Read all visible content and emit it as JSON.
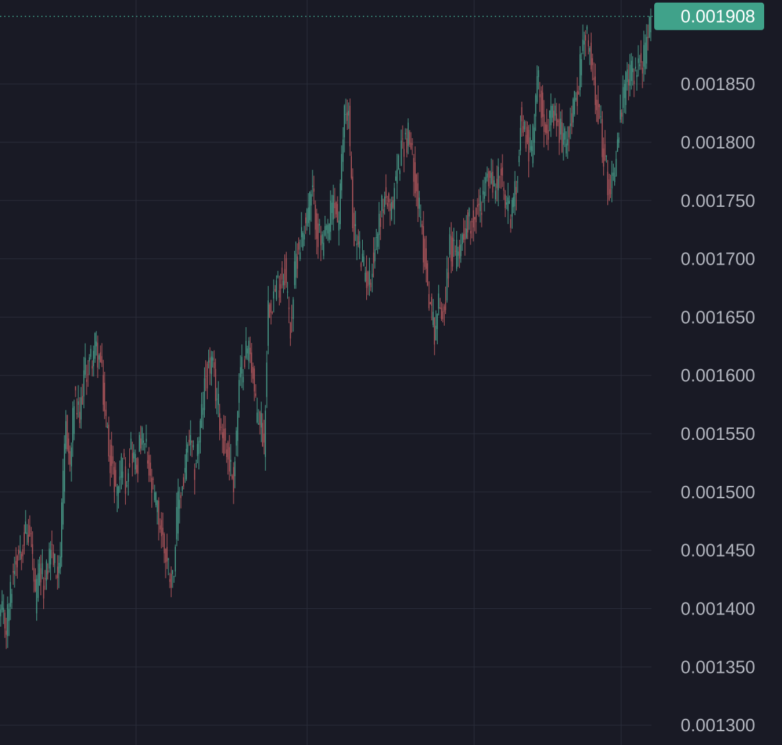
{
  "theme": {
    "background": "#191a25",
    "grid_color": "#2a2d3a",
    "up_color": "#4ba38f",
    "down_color": "#b95a5f",
    "axis_text_color": "#b2b5be",
    "last_price_color": "#40a28a"
  },
  "chart_data": {
    "type": "candlestick",
    "title": "",
    "xlabel": "",
    "ylabel": "",
    "grid": true,
    "y_axis_position": "right",
    "ylim": [
      0.001283,
      0.001922
    ],
    "y_ticks": [
      "0.001300",
      "0.001350",
      "0.001400",
      "0.001450",
      "0.001500",
      "0.001550",
      "0.001600",
      "0.001650",
      "0.001700",
      "0.001750",
      "0.001800",
      "0.001850"
    ],
    "last_price": "0.001908",
    "price_waypoints": [
      [
        0,
        0.001395
      ],
      [
        4,
        0.001385
      ],
      [
        10,
        0.00144
      ],
      [
        18,
        0.001465
      ],
      [
        22,
        0.00146
      ],
      [
        25,
        0.001405
      ],
      [
        28,
        0.00143
      ],
      [
        32,
        0.00142
      ],
      [
        36,
        0.001455
      ],
      [
        40,
        0.00143
      ],
      [
        43,
        0.00145
      ],
      [
        47,
        0.00156
      ],
      [
        50,
        0.00152
      ],
      [
        53,
        0.00158
      ],
      [
        57,
        0.00156
      ],
      [
        60,
        0.0016
      ],
      [
        64,
        0.00161
      ],
      [
        68,
        0.001625
      ],
      [
        72,
        0.00161
      ],
      [
        75,
        0.00157
      ],
      [
        80,
        0.00152
      ],
      [
        84,
        0.0015
      ],
      [
        88,
        0.00153
      ],
      [
        90,
        0.00151
      ],
      [
        94,
        0.00154
      ],
      [
        98,
        0.00152
      ],
      [
        101,
        0.001545
      ],
      [
        105,
        0.001535
      ],
      [
        108,
        0.001505
      ],
      [
        112,
        0.00149
      ],
      [
        116,
        0.001465
      ],
      [
        120,
        0.00144
      ],
      [
        124,
        0.001425
      ],
      [
        128,
        0.00149
      ],
      [
        132,
        0.00151
      ],
      [
        136,
        0.001545
      ],
      [
        140,
        0.00152
      ],
      [
        144,
        0.001555
      ],
      [
        148,
        0.0016
      ],
      [
        152,
        0.00161
      ],
      [
        156,
        0.00158
      ],
      [
        160,
        0.00155
      ],
      [
        164,
        0.00153
      ],
      [
        168,
        0.00151
      ],
      [
        172,
        0.00159
      ],
      [
        176,
        0.00162
      ],
      [
        180,
        0.001625
      ],
      [
        184,
        0.00157
      ],
      [
        188,
        0.00156
      ],
      [
        190,
        0.00154
      ],
      [
        193,
        0.00166
      ],
      [
        197,
        0.00167
      ],
      [
        201,
        0.00168
      ],
      [
        205,
        0.00169
      ],
      [
        209,
        0.00164
      ],
      [
        213,
        0.0017
      ],
      [
        217,
        0.00172
      ],
      [
        221,
        0.00174
      ],
      [
        225,
        0.001755
      ],
      [
        229,
        0.00172
      ],
      [
        233,
        0.00171
      ],
      [
        237,
        0.00173
      ],
      [
        240,
        0.00175
      ],
      [
        244,
        0.00173
      ],
      [
        248,
        0.00183
      ],
      [
        251,
        0.001825
      ],
      [
        254,
        0.00173
      ],
      [
        258,
        0.00171
      ],
      [
        262,
        0.00169
      ],
      [
        266,
        0.00168
      ],
      [
        270,
        0.00171
      ],
      [
        274,
        0.00174
      ],
      [
        278,
        0.001755
      ],
      [
        281,
        0.00173
      ],
      [
        285,
        0.00177
      ],
      [
        290,
        0.0018
      ],
      [
        294,
        0.001805
      ],
      [
        298,
        0.00178
      ],
      [
        302,
        0.00174
      ],
      [
        306,
        0.0017
      ],
      [
        310,
        0.00166
      ],
      [
        313,
        0.00164
      ],
      [
        316,
        0.00166
      ],
      [
        320,
        0.001655
      ],
      [
        324,
        0.00171
      ],
      [
        328,
        0.0017
      ],
      [
        332,
        0.001715
      ],
      [
        336,
        0.00173
      ],
      [
        340,
        0.001735
      ],
      [
        344,
        0.00174
      ],
      [
        348,
        0.001755
      ],
      [
        352,
        0.00177
      ],
      [
        356,
        0.00176
      ],
      [
        360,
        0.001775
      ],
      [
        364,
        0.001745
      ],
      [
        368,
        0.00174
      ],
      [
        372,
        0.00176
      ],
      [
        375,
        0.00182
      ],
      [
        379,
        0.001805
      ],
      [
        383,
        0.00179
      ],
      [
        387,
        0.00186
      ],
      [
        391,
        0.001825
      ],
      [
        395,
        0.001815
      ],
      [
        399,
        0.00182
      ],
      [
        403,
        0.00181
      ],
      [
        407,
        0.0018
      ],
      [
        411,
        0.00182
      ],
      [
        415,
        0.001835
      ],
      [
        419,
        0.001875
      ],
      [
        423,
        0.00189
      ],
      [
        427,
        0.00186
      ],
      [
        431,
        0.00183
      ],
      [
        435,
        0.00179
      ],
      [
        439,
        0.00176
      ],
      [
        443,
        0.00178
      ],
      [
        447,
        0.00182
      ],
      [
        451,
        0.00185
      ],
      [
        455,
        0.00186
      ],
      [
        459,
        0.001865
      ],
      [
        463,
        0.00187
      ],
      [
        466,
        0.00188
      ],
      [
        469,
        0.001908
      ]
    ]
  }
}
